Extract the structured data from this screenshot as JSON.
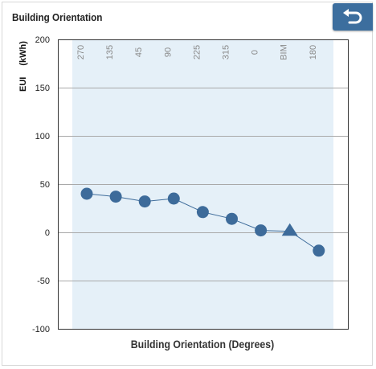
{
  "panel": {
    "title": "Building Orientation",
    "action_icon": "undo-arrow-icon"
  },
  "colors": {
    "plot_band": "#e5f0f8",
    "series": "#3d6b9a",
    "tab_button": "#3c6e9e",
    "gridline": "#a9a9a9",
    "category_text": "#8a8a8a"
  },
  "chart_data": {
    "type": "line",
    "xlabel": "Building Orientation (Degrees)",
    "ylabel": "EUI",
    "ylabel_unit": "(kWh)",
    "ylim": [
      -100,
      200
    ],
    "yticks": [
      "200",
      "150",
      "100",
      "50",
      "0",
      "-50",
      "-100"
    ],
    "ytick_values": [
      200,
      150,
      100,
      50,
      0,
      -50,
      -100
    ],
    "grid": true,
    "categories": [
      "270",
      "135",
      "45",
      "90",
      "225",
      "315",
      "0",
      "BIM",
      "180"
    ],
    "series": [
      {
        "values": [
          40,
          37,
          32,
          35,
          21,
          14,
          2,
          1,
          -19
        ],
        "markers": [
          "circle",
          "circle",
          "circle",
          "circle",
          "circle",
          "circle",
          "circle",
          "triangle",
          "circle"
        ]
      }
    ]
  }
}
